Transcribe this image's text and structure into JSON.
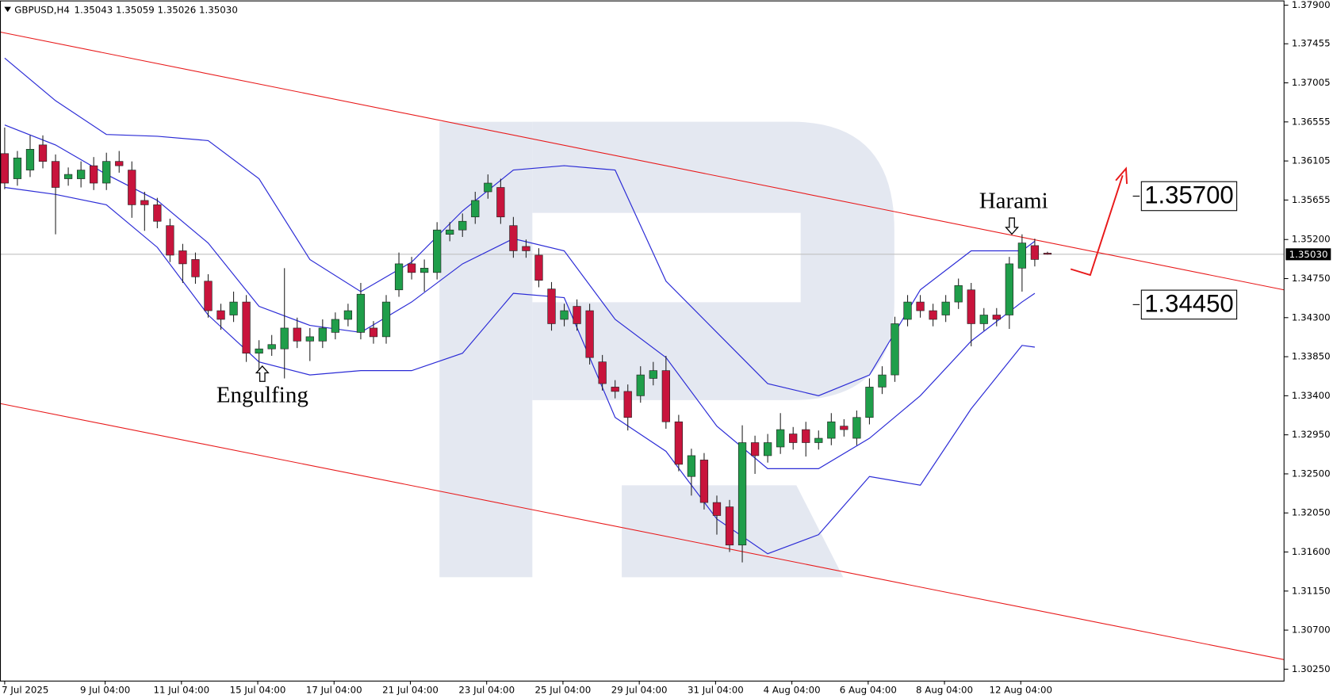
{
  "chart_data": {
    "type": "candlestick",
    "symbol": "GBPUSD,H4",
    "quote": "1.35043 1.35059 1.35026 1.35030",
    "colors": {
      "up": "#1f9e4a",
      "down": "#c8143c",
      "band": "#2b2bd6",
      "channel": "#e8191a"
    },
    "open": [
      1.3619,
      1.359,
      1.36,
      1.3629,
      1.361,
      1.359,
      1.359,
      1.3605,
      1.3585,
      1.361,
      1.36,
      1.3565,
      1.356,
      1.3536,
      1.3507,
      1.3497,
      1.3472,
      1.3438,
      1.3433,
      1.3448,
      1.3389,
      1.3394,
      1.3394,
      1.3418,
      1.3403,
      1.3403,
      1.3413,
      1.3428,
      1.3413,
      1.3418,
      1.3408,
      1.3462,
      1.3492,
      1.3482,
      1.3482,
      1.3526,
      1.3531,
      1.3546,
      1.3575,
      1.358,
      1.3536,
      1.3512,
      1.3502,
      1.3463,
      1.3428,
      1.3443,
      1.3438,
      1.3379,
      1.335,
      1.3345,
      1.334,
      1.336,
      1.3369,
      1.331,
      1.3247,
      1.3266,
      1.3217,
      1.3212,
      1.3168,
      1.3286,
      1.3271,
      1.3281,
      1.3296,
      1.3301,
      1.3286,
      1.3291,
      1.3305,
      1.3291,
      1.3315,
      1.335,
      1.3364,
      1.3428,
      1.3448,
      1.3438,
      1.3433,
      1.3448,
      1.3462,
      1.3423,
      1.3433,
      1.3433,
      1.3487,
      1.3513,
      1.35043
    ],
    "high": [
      1.3649,
      1.3622,
      1.364,
      1.364,
      1.3618,
      1.3603,
      1.361,
      1.3615,
      1.362,
      1.3622,
      1.361,
      1.3575,
      1.3568,
      1.3544,
      1.3515,
      1.3505,
      1.348,
      1.3446,
      1.346,
      1.3456,
      1.3404,
      1.341,
      1.3487,
      1.343,
      1.3418,
      1.3428,
      1.3436,
      1.3446,
      1.347,
      1.3426,
      1.3456,
      1.3505,
      1.35,
      1.3497,
      1.354,
      1.354,
      1.355,
      1.3575,
      1.3595,
      1.359,
      1.3546,
      1.352,
      1.351,
      1.3471,
      1.3446,
      1.3451,
      1.3446,
      1.3387,
      1.3358,
      1.3353,
      1.3374,
      1.3379,
      1.3386,
      1.3318,
      1.3279,
      1.3274,
      1.3225,
      1.322,
      1.3306,
      1.3294,
      1.3296,
      1.332,
      1.3304,
      1.331,
      1.33,
      1.332,
      1.3313,
      1.3323,
      1.336,
      1.3374,
      1.3431,
      1.3456,
      1.3456,
      1.3446,
      1.3456,
      1.3475,
      1.347,
      1.3441,
      1.3441,
      1.35,
      1.3526,
      1.3521,
      1.35059
    ],
    "low": [
      1.3578,
      1.3582,
      1.3592,
      1.3602,
      1.3526,
      1.3582,
      1.358,
      1.3577,
      1.3577,
      1.3597,
      1.3545,
      1.353,
      1.3533,
      1.3494,
      1.347,
      1.3469,
      1.343,
      1.3416,
      1.3425,
      1.3379,
      1.337,
      1.3386,
      1.336,
      1.3395,
      1.338,
      1.3395,
      1.3405,
      1.342,
      1.3405,
      1.34,
      1.34,
      1.3454,
      1.3474,
      1.346,
      1.3474,
      1.3518,
      1.3523,
      1.3538,
      1.3567,
      1.3538,
      1.3499,
      1.3499,
      1.3465,
      1.3415,
      1.342,
      1.3415,
      1.3376,
      1.3346,
      1.3337,
      1.33,
      1.3332,
      1.3352,
      1.3302,
      1.3253,
      1.3225,
      1.3209,
      1.318,
      1.316,
      1.3148,
      1.325,
      1.3263,
      1.3273,
      1.3278,
      1.327,
      1.3278,
      1.3283,
      1.3293,
      1.3283,
      1.3307,
      1.3342,
      1.3356,
      1.342,
      1.343,
      1.342,
      1.3425,
      1.344,
      1.3397,
      1.3415,
      1.342,
      1.3417,
      1.346,
      1.3489,
      1.35026
    ],
    "close": [
      1.3585,
      1.3614,
      1.3624,
      1.361,
      1.358,
      1.3595,
      1.36,
      1.3585,
      1.361,
      1.3605,
      1.356,
      1.356,
      1.3541,
      1.3502,
      1.3492,
      1.3477,
      1.3438,
      1.3428,
      1.3448,
      1.3389,
      1.3394,
      1.3399,
      1.3418,
      1.3403,
      1.3408,
      1.3418,
      1.3428,
      1.3438,
      1.3457,
      1.3408,
      1.3448,
      1.3492,
      1.3482,
      1.3487,
      1.3531,
      1.3531,
      1.3541,
      1.3565,
      1.3585,
      1.3546,
      1.3507,
      1.3507,
      1.3473,
      1.3423,
      1.3438,
      1.3423,
      1.3384,
      1.3354,
      1.3345,
      1.3315,
      1.3364,
      1.3369,
      1.331,
      1.3261,
      1.3271,
      1.3217,
      1.3202,
      1.3168,
      1.3286,
      1.3271,
      1.3286,
      1.3301,
      1.3286,
      1.3286,
      1.3291,
      1.331,
      1.3301,
      1.3315,
      1.335,
      1.3364,
      1.3423,
      1.3448,
      1.3438,
      1.3428,
      1.3448,
      1.3467,
      1.3423,
      1.3433,
      1.3428,
      1.3492,
      1.3516,
      1.3497,
      1.3503
    ],
    "bands": {
      "x": [
        0,
        4,
        8,
        12,
        16,
        20,
        24,
        28,
        32,
        36,
        40,
        44,
        48,
        52,
        56,
        60,
        64,
        68,
        72,
        76,
        80,
        81
      ],
      "upper": [
        1.3729,
        1.368,
        1.3641,
        1.3639,
        1.3634,
        1.359,
        1.3497,
        1.346,
        1.3494,
        1.3553,
        1.36,
        1.3605,
        1.36,
        1.3472,
        1.3413,
        1.3354,
        1.334,
        1.3364,
        1.3462,
        1.3507,
        1.3507,
        1.3518
      ],
      "middle": [
        1.3652,
        1.3629,
        1.3595,
        1.3565,
        1.3516,
        1.3443,
        1.3421,
        1.3413,
        1.3448,
        1.3492,
        1.3521,
        1.3507,
        1.3428,
        1.3384,
        1.3305,
        1.3256,
        1.3256,
        1.3291,
        1.334,
        1.3403,
        1.3448,
        1.3458
      ],
      "lower": [
        1.358,
        1.3572,
        1.356,
        1.3511,
        1.3433,
        1.3379,
        1.3364,
        1.3369,
        1.3369,
        1.3389,
        1.3458,
        1.3453,
        1.3315,
        1.3276,
        1.3198,
        1.3158,
        1.318,
        1.3247,
        1.3237,
        1.3325,
        1.3398,
        1.3396
      ]
    },
    "channel": {
      "x": [
        -0.335,
        100.6
      ],
      "upper": [
        1.3759,
        1.3462
      ],
      "lower": [
        1.3331,
        1.3036
      ]
    },
    "current_price": {
      "value": 1.3503,
      "label": "1.35030"
    },
    "levels": [
      {
        "value": 1.357,
        "label": "1.35700"
      },
      {
        "value": 1.3445,
        "label": "1.34450"
      }
    ],
    "annotations": [
      "Engulfing",
      "Harami"
    ],
    "xlim": [
      -0.335,
      100.6
    ],
    "xticks": [
      {
        "value": 0,
        "label": "7 Jul 2025"
      },
      {
        "value": 7.9,
        "label": "9 Jul 04:00"
      },
      {
        "value": 13.9,
        "label": "11 Jul 04:00"
      },
      {
        "value": 19.9,
        "label": "15 Jul 04:00"
      },
      {
        "value": 25.9,
        "label": "17 Jul 04:00"
      },
      {
        "value": 31.9,
        "label": "21 Jul 04:00"
      },
      {
        "value": 37.9,
        "label": "23 Jul 04:00"
      },
      {
        "value": 43.9,
        "label": "25 Jul 04:00"
      },
      {
        "value": 49.9,
        "label": "29 Jul 04:00"
      },
      {
        "value": 55.9,
        "label": "31 Jul 04:00"
      },
      {
        "value": 61.9,
        "label": "4 Aug 04:00"
      },
      {
        "value": 67.9,
        "label": "6 Aug 04:00"
      },
      {
        "value": 73.9,
        "label": "8 Aug 04:00"
      },
      {
        "value": 79.9,
        "label": "12 Aug 04:00"
      }
    ],
    "ylim": [
      1.30113,
      1.37949
    ],
    "yticks": [
      {
        "value": 1.379,
        "label": "1.37900"
      },
      {
        "value": 1.37455,
        "label": "1.37455"
      },
      {
        "value": 1.37005,
        "label": "1.37005"
      },
      {
        "value": 1.36555,
        "label": "1.36555"
      },
      {
        "value": 1.36105,
        "label": "1.36105"
      },
      {
        "value": 1.35655,
        "label": "1.35655"
      },
      {
        "value": 1.352,
        "label": "1.35200"
      },
      {
        "value": 1.3475,
        "label": "1.34750"
      },
      {
        "value": 1.343,
        "label": "1.34300"
      },
      {
        "value": 1.3385,
        "label": "1.33850"
      },
      {
        "value": 1.334,
        "label": "1.33400"
      },
      {
        "value": 1.3295,
        "label": "1.32950"
      },
      {
        "value": 1.325,
        "label": "1.32500"
      },
      {
        "value": 1.3205,
        "label": "1.32050"
      },
      {
        "value": 1.316,
        "label": "1.31600"
      },
      {
        "value": 1.3115,
        "label": "1.31150"
      },
      {
        "value": 1.307,
        "label": "1.30700"
      },
      {
        "value": 1.3025,
        "label": "1.30250"
      }
    ]
  }
}
